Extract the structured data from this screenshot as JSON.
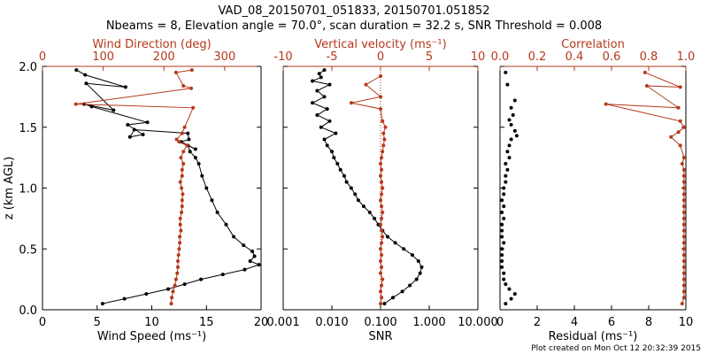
{
  "figure": {
    "title_line1": "VAD_08_20150701_051833, 20150701.051852",
    "title_line2": "Nbeams = 8, Elevation angle = 70.0°, scan duration = 32.2 s, SNR Threshold = 0.008",
    "footer": "Plot created on Mon Oct 12 20:32:39 2015",
    "colors": {
      "black_series": "#000000",
      "red_series": "#b5381a"
    }
  },
  "chart_data": [
    {
      "type": "line",
      "name": "panel-wind",
      "ylabel": "z (km AGL)",
      "ylim": [
        0,
        2.0
      ],
      "yticks": [
        "0.0",
        "0.5",
        "1.0",
        "1.5",
        "2.0"
      ],
      "ytick_values": [
        0,
        0.5,
        1.0,
        1.5,
        2.0
      ],
      "bottom_axis": {
        "label": "Wind Speed (ms⁻¹)",
        "range": [
          0,
          20
        ],
        "ticks": [
          "0",
          "5",
          "10",
          "15",
          "20"
        ],
        "tick_values": [
          0,
          5,
          10,
          15,
          20
        ]
      },
      "top_axis": {
        "label": "Wind Direction (deg)",
        "range": [
          0,
          360
        ],
        "ticks": [
          "0",
          "100",
          "200",
          "300"
        ],
        "tick_values": [
          0,
          100,
          200,
          300
        ]
      },
      "series": [
        {
          "color": "black",
          "axis": "bottom",
          "x": [
            5.5,
            7.5,
            9.5,
            11.5,
            13.0,
            14.5,
            16.5,
            18.5,
            19.8,
            19.0,
            19.4,
            19.2,
            18.4,
            17.5,
            16.8,
            16.0,
            15.5,
            15.0,
            14.6,
            14.3,
            14.0,
            13.5,
            13.3,
            14.0,
            12.7,
            13.4,
            13.3,
            8.4,
            8.0,
            9.2,
            7.8,
            9.6,
            4.5,
            3.8,
            6.5,
            4.0,
            7.6,
            3.9,
            3.1
          ],
          "y": [
            0.05,
            0.09,
            0.13,
            0.17,
            0.21,
            0.25,
            0.29,
            0.33,
            0.37,
            0.4,
            0.44,
            0.48,
            0.53,
            0.6,
            0.7,
            0.8,
            0.9,
            1.0,
            1.1,
            1.2,
            1.25,
            1.3,
            1.35,
            1.32,
            1.38,
            1.4,
            1.45,
            1.48,
            1.42,
            1.44,
            1.52,
            1.54,
            1.67,
            1.69,
            1.64,
            1.86,
            1.83,
            1.93,
            1.97
          ]
        },
        {
          "color": "red",
          "axis": "top",
          "x": [
            212,
            213,
            215,
            218,
            220,
            222,
            223,
            223,
            224,
            225,
            226,
            226,
            228,
            227,
            227,
            229,
            230,
            230,
            231,
            229,
            227,
            230,
            230,
            232,
            228,
            232,
            238,
            225,
            221,
            230,
            234,
            248,
            55,
            245,
            232,
            220,
            246
          ],
          "y": [
            0.05,
            0.1,
            0.15,
            0.2,
            0.25,
            0.3,
            0.35,
            0.4,
            0.45,
            0.5,
            0.55,
            0.6,
            0.65,
            0.7,
            0.75,
            0.8,
            0.85,
            0.9,
            0.95,
            1.0,
            1.05,
            1.1,
            1.15,
            1.2,
            1.25,
            1.3,
            1.35,
            1.38,
            1.4,
            1.45,
            1.5,
            1.66,
            1.69,
            1.82,
            1.84,
            1.95,
            1.97
          ]
        }
      ]
    },
    {
      "type": "line",
      "name": "panel-snr",
      "ylim": [
        0,
        2.0
      ],
      "bottom_axis": {
        "label": "SNR",
        "range_log10": [
          -3,
          1
        ],
        "ticks": [
          "0.001",
          "0.010",
          "0.100",
          "1.000",
          "10.000"
        ],
        "tick_values": [
          0.001,
          0.01,
          0.1,
          1,
          10
        ]
      },
      "top_axis": {
        "label": "Vertical velocity (ms⁻¹)",
        "range": [
          -10,
          10
        ],
        "ticks": [
          "-10",
          "-5",
          "0",
          "5",
          "10"
        ],
        "tick_values": [
          -10,
          -5,
          0,
          5,
          10
        ]
      },
      "series": [
        {
          "color": "black",
          "axis": "bottom",
          "x": [
            0.12,
            0.18,
            0.28,
            0.4,
            0.55,
            0.65,
            0.7,
            0.6,
            0.45,
            0.3,
            0.2,
            0.14,
            0.11,
            0.09,
            0.075,
            0.06,
            0.045,
            0.035,
            0.03,
            0.025,
            0.02,
            0.018,
            0.015,
            0.013,
            0.011,
            0.01,
            0.008,
            0.007,
            0.012,
            0.006,
            0.009,
            0.005,
            0.008,
            0.004,
            0.007,
            0.005,
            0.009,
            0.004,
            0.006,
            0.0055,
            0.007
          ],
          "y": [
            0.05,
            0.1,
            0.15,
            0.2,
            0.25,
            0.3,
            0.35,
            0.4,
            0.45,
            0.5,
            0.55,
            0.6,
            0.65,
            0.7,
            0.75,
            0.8,
            0.85,
            0.9,
            0.95,
            1.0,
            1.05,
            1.1,
            1.15,
            1.2,
            1.25,
            1.3,
            1.35,
            1.4,
            1.45,
            1.5,
            1.55,
            1.6,
            1.65,
            1.7,
            1.75,
            1.8,
            1.85,
            1.88,
            1.91,
            1.94,
            1.97
          ]
        },
        {
          "color": "red",
          "axis": "top",
          "x": [
            0.0,
            0.1,
            0.0,
            0.1,
            0.2,
            0.0,
            0.1,
            0.0,
            0.1,
            0.0,
            0.1,
            0.2,
            0.1,
            0.0,
            0.1,
            0.2,
            0.1,
            0.0,
            0.1,
            0.2,
            0.1,
            0.0,
            0.1,
            0.0,
            0.1,
            0.2,
            0.3,
            0.4,
            0.3,
            0.5,
            0.2,
            0.0,
            -3.0,
            0.0,
            -1.5,
            0.0
          ],
          "y": [
            0.05,
            0.1,
            0.15,
            0.2,
            0.25,
            0.3,
            0.35,
            0.4,
            0.45,
            0.5,
            0.55,
            0.6,
            0.65,
            0.7,
            0.75,
            0.8,
            0.85,
            0.9,
            0.95,
            1.0,
            1.05,
            1.1,
            1.15,
            1.2,
            1.25,
            1.3,
            1.35,
            1.4,
            1.45,
            1.5,
            1.55,
            1.65,
            1.7,
            1.75,
            1.85,
            1.92
          ]
        }
      ]
    },
    {
      "type": "line",
      "name": "panel-correlation",
      "ylim": [
        0,
        2.0
      ],
      "bottom_axis": {
        "label": "Residual (ms⁻¹)",
        "range": [
          0,
          10
        ],
        "ticks": [
          "0",
          "2",
          "4",
          "6",
          "8",
          "10"
        ],
        "tick_values": [
          0,
          2,
          4,
          6,
          8,
          10
        ]
      },
      "top_axis": {
        "label": "Correlation",
        "range": [
          0,
          1.0
        ],
        "ticks": [
          "0.0",
          "0.2",
          "0.4",
          "0.6",
          "0.8",
          "1.0"
        ],
        "tick_values": [
          0,
          0.2,
          0.4,
          0.6,
          0.8,
          1.0
        ]
      },
      "series": [
        {
          "color": "black",
          "axis": "bottom",
          "marker_only": true,
          "x": [
            0.3,
            0.6,
            0.8,
            0.5,
            0.3,
            0.2,
            0.2,
            0.1,
            0.1,
            0.1,
            0.1,
            0.2,
            0.1,
            0.1,
            0.1,
            0.2,
            0.1,
            0.2,
            0.1,
            0.2,
            0.2,
            0.3,
            0.3,
            0.4,
            0.3,
            0.5,
            0.4,
            0.5,
            0.6,
            0.9,
            0.8,
            0.6,
            0.5,
            0.7,
            0.6,
            0.8,
            0.4,
            0.3
          ],
          "y": [
            0.05,
            0.09,
            0.13,
            0.17,
            0.21,
            0.25,
            0.3,
            0.35,
            0.4,
            0.45,
            0.5,
            0.55,
            0.6,
            0.65,
            0.7,
            0.75,
            0.8,
            0.85,
            0.9,
            0.95,
            1.0,
            1.05,
            1.1,
            1.15,
            1.2,
            1.25,
            1.3,
            1.35,
            1.4,
            1.43,
            1.47,
            1.52,
            1.56,
            1.6,
            1.66,
            1.72,
            1.85,
            1.95
          ]
        },
        {
          "color": "red",
          "axis": "top",
          "x": [
            0.98,
            0.99,
            0.99,
            0.99,
            0.99,
            0.99,
            0.99,
            0.99,
            0.99,
            0.99,
            0.99,
            0.99,
            0.99,
            0.99,
            0.99,
            0.99,
            0.99,
            0.99,
            0.99,
            0.99,
            0.99,
            0.99,
            0.99,
            0.98,
            0.99,
            0.97,
            0.92,
            0.96,
            0.99,
            0.97,
            0.57,
            0.96,
            0.79,
            0.97,
            0.78
          ],
          "y": [
            0.05,
            0.1,
            0.15,
            0.2,
            0.25,
            0.3,
            0.35,
            0.4,
            0.45,
            0.5,
            0.55,
            0.6,
            0.65,
            0.7,
            0.75,
            0.8,
            0.85,
            0.9,
            0.95,
            1.0,
            1.05,
            1.1,
            1.15,
            1.2,
            1.25,
            1.35,
            1.42,
            1.46,
            1.5,
            1.55,
            1.69,
            1.66,
            1.84,
            1.83,
            1.95
          ]
        }
      ]
    }
  ]
}
